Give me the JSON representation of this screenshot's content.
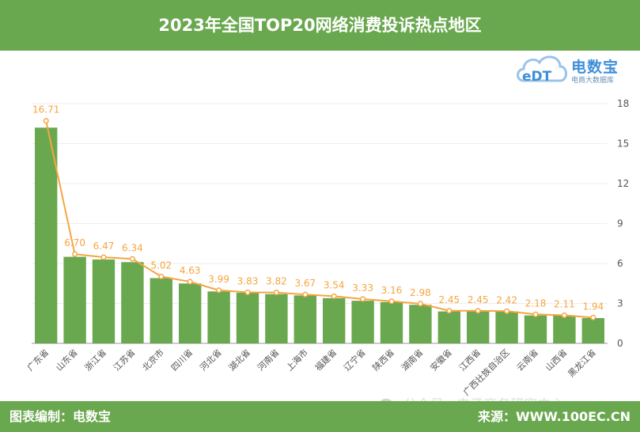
{
  "header": {
    "title": "2023年全国TOP20网络消费投诉热点地区"
  },
  "logo": {
    "text": "电数宝",
    "subtitle": "电商大数据库",
    "mark": "eDT"
  },
  "colors": {
    "brand_green": "#6aa84f",
    "bar": "#6aa84f",
    "line": "#f6a540",
    "grid": "#eeeeee"
  },
  "chart_data": {
    "type": "bar",
    "categories": [
      "广东省",
      "山东省",
      "浙江省",
      "江苏省",
      "北京市",
      "四川省",
      "河北省",
      "湖北省",
      "河南省",
      "上海市",
      "福建省",
      "辽宁省",
      "陕西省",
      "湖南省",
      "安徽省",
      "江西省",
      "广西壮族自治区",
      "云南省",
      "山西省",
      "黑龙江省"
    ],
    "series": [
      {
        "type": "bar",
        "values": [
          16.2,
          6.5,
          6.3,
          6.1,
          4.9,
          4.5,
          3.9,
          3.8,
          3.7,
          3.6,
          3.4,
          3.2,
          3.1,
          2.9,
          2.4,
          2.4,
          2.4,
          2.1,
          2.1,
          1.9
        ]
      },
      {
        "type": "line",
        "values": [
          16.71,
          6.7,
          6.47,
          6.34,
          5.02,
          4.63,
          3.99,
          3.83,
          3.82,
          3.67,
          3.54,
          3.33,
          3.16,
          2.98,
          2.45,
          2.45,
          2.42,
          2.18,
          2.11,
          1.94
        ]
      }
    ],
    "data_labels": [
      "16.71",
      "6.70",
      "6.47",
      "6.34",
      "5.02",
      "4.63",
      "3.99",
      "3.83",
      "3.82",
      "3.67",
      "3.54",
      "3.33",
      "3.16",
      "2.98",
      "2.45",
      "2.45",
      "2.42",
      "2.18",
      "2.11",
      "1.94"
    ],
    "y_ticks": [
      "0",
      "3",
      "6",
      "9",
      "12",
      "15",
      "18"
    ],
    "ylim": [
      0,
      18
    ],
    "y_axis_side": "right",
    "grid": true,
    "title": "",
    "xlabel": "",
    "ylabel": ""
  },
  "footer": {
    "left": "图表编制：电数宝",
    "right": "来源：WWW.100EC.CN"
  },
  "watermark": {
    "text": "公众号 · 电子商务研究中心"
  }
}
